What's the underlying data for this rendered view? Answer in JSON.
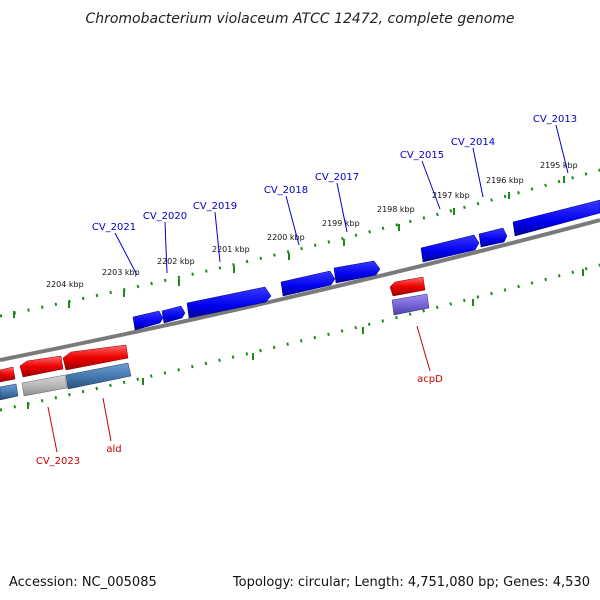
{
  "title": "Chromobacterium violaceum ATCC 12472, complete genome",
  "footer": {
    "accession": "Accession: NC_005085",
    "topology": "Topology: circular; Length: 4,751,080 bp; Genes: 4,530"
  },
  "colors": {
    "forward_gene": "#0000ee",
    "reverse_gene": "#ee0000",
    "reverse_gene_alt": "#4a7fb5",
    "pseudo_gene": "#b0b0b0",
    "rna_gene": "#6f5fd0",
    "backbone": "#7a7a7a",
    "ticks": "#1a8a1a",
    "forward_label": "#0000cc",
    "reverse_label": "#cc0000"
  },
  "scale_labels": [
    "2195 kbp",
    "2196 kbp",
    "2197 kbp",
    "2198 kbp",
    "2199 kbp",
    "2200 kbp",
    "2201 kbp",
    "2202 kbp",
    "2203 kbp",
    "2204 kbp"
  ],
  "genes_top": [
    "CV_2013",
    "CV_2014",
    "CV_2015",
    "CV_2017",
    "CV_2018",
    "CV_2019",
    "CV_2020",
    "CV_2021"
  ],
  "genes_bottom": [
    "acpD",
    "ald",
    "CV_2023"
  ]
}
